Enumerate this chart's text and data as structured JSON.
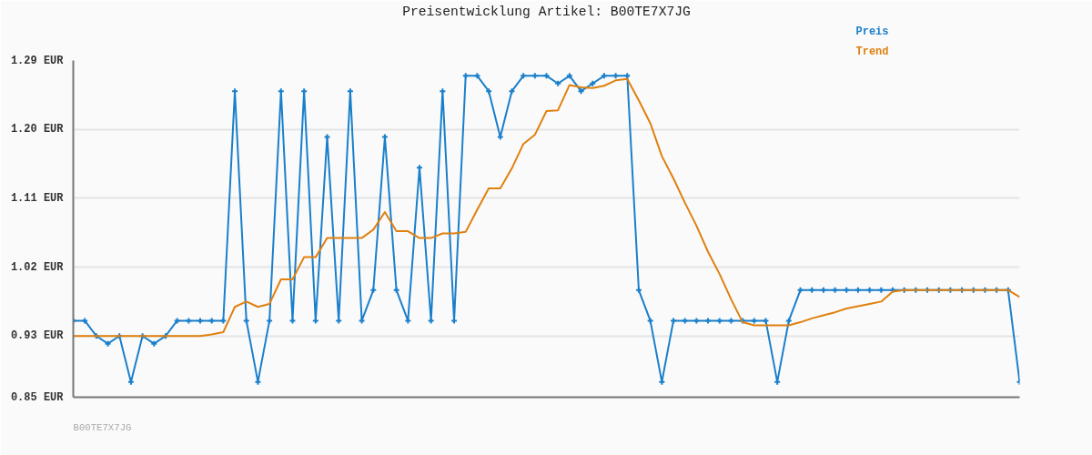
{
  "chart_data": {
    "type": "line",
    "title": "Preisentwicklung Artikel: B00TE7X7JG",
    "annotations": [
      "B00TE7X7JG"
    ],
    "categories": [
      null,
      null,
      null,
      null,
      null,
      null,
      null,
      null,
      null,
      null,
      null,
      null,
      null,
      null,
      null,
      null,
      null,
      null,
      null,
      null,
      null,
      null,
      null,
      null,
      null,
      null,
      null,
      null,
      null,
      null,
      null,
      null,
      null,
      null,
      null,
      null,
      null,
      null,
      null,
      null,
      null,
      null,
      null,
      null,
      null,
      null,
      null,
      null,
      null,
      null,
      null,
      null,
      null,
      null,
      null,
      null,
      null,
      null,
      null,
      null,
      null,
      null,
      null,
      null,
      null,
      null,
      null,
      null,
      null,
      null,
      null,
      null,
      null,
      null,
      null,
      null,
      null,
      null,
      null,
      null,
      null,
      null,
      null
    ],
    "series": [
      {
        "name": "Preis",
        "color": "#1a7fcb",
        "marker": "cross",
        "values": [
          0.95,
          0.95,
          0.93,
          0.92,
          0.93,
          0.87,
          0.93,
          0.92,
          0.93,
          0.95,
          0.95,
          0.95,
          0.95,
          0.95,
          1.25,
          0.95,
          0.87,
          0.95,
          1.25,
          0.95,
          1.25,
          0.95,
          1.19,
          0.95,
          1.25,
          0.95,
          0.99,
          1.19,
          0.99,
          0.95,
          1.15,
          0.95,
          1.25,
          0.95,
          1.27,
          1.27,
          1.25,
          1.19,
          1.25,
          1.27,
          1.27,
          1.27,
          1.26,
          1.27,
          1.25,
          1.26,
          1.27,
          1.27,
          1.27,
          0.99,
          0.95,
          0.87,
          0.95,
          0.95,
          0.95,
          0.95,
          0.95,
          0.95,
          0.95,
          0.95,
          0.95,
          0.87,
          0.95,
          0.99,
          0.99,
          0.99,
          0.99,
          0.99,
          0.99,
          0.99,
          0.99,
          0.99,
          0.99,
          0.99,
          0.99,
          0.99,
          0.99,
          0.99,
          0.99,
          0.99,
          0.99,
          0.99,
          0.87
        ]
      },
      {
        "name": "Trend",
        "color": "#e0800f",
        "marker": "none",
        "values": [
          0.93,
          0.93,
          0.93,
          0.93,
          0.93,
          0.93,
          0.93,
          0.93,
          0.93,
          0.93,
          0.93,
          0.93,
          0.932,
          0.935,
          0.968,
          0.975,
          0.968,
          0.972,
          1.004,
          1.004,
          1.033,
          1.033,
          1.058,
          1.058,
          1.058,
          1.058,
          1.069,
          1.092,
          1.067,
          1.067,
          1.058,
          1.058,
          1.064,
          1.064,
          1.066,
          1.095,
          1.123,
          1.123,
          1.149,
          1.181,
          1.193,
          1.224,
          1.225,
          1.258,
          1.255,
          1.254,
          1.257,
          1.264,
          1.266,
          1.238,
          1.208,
          1.165,
          1.136,
          1.104,
          1.074,
          1.04,
          1.011,
          0.978,
          0.948,
          0.944,
          0.944,
          0.944,
          0.944,
          0.948,
          0.953,
          0.957,
          0.961,
          0.966,
          0.969,
          0.972,
          0.975,
          0.988,
          0.99,
          0.99,
          0.99,
          0.99,
          0.99,
          0.99,
          0.99,
          0.99,
          0.99,
          0.99,
          0.981
        ]
      }
    ],
    "ylim": [
      0.85,
      1.29
    ],
    "yticks": [
      {
        "value": 0.85,
        "label": "0.85 EUR"
      },
      {
        "value": 0.93,
        "label": "0.93 EUR"
      },
      {
        "value": 1.02,
        "label": "1.02 EUR"
      },
      {
        "value": 1.11,
        "label": "1.11 EUR"
      },
      {
        "value": 1.2,
        "label": "1.20 EUR"
      },
      {
        "value": 1.29,
        "label": "1.29 EUR"
      }
    ],
    "grid": "y",
    "line_style": "solid"
  }
}
